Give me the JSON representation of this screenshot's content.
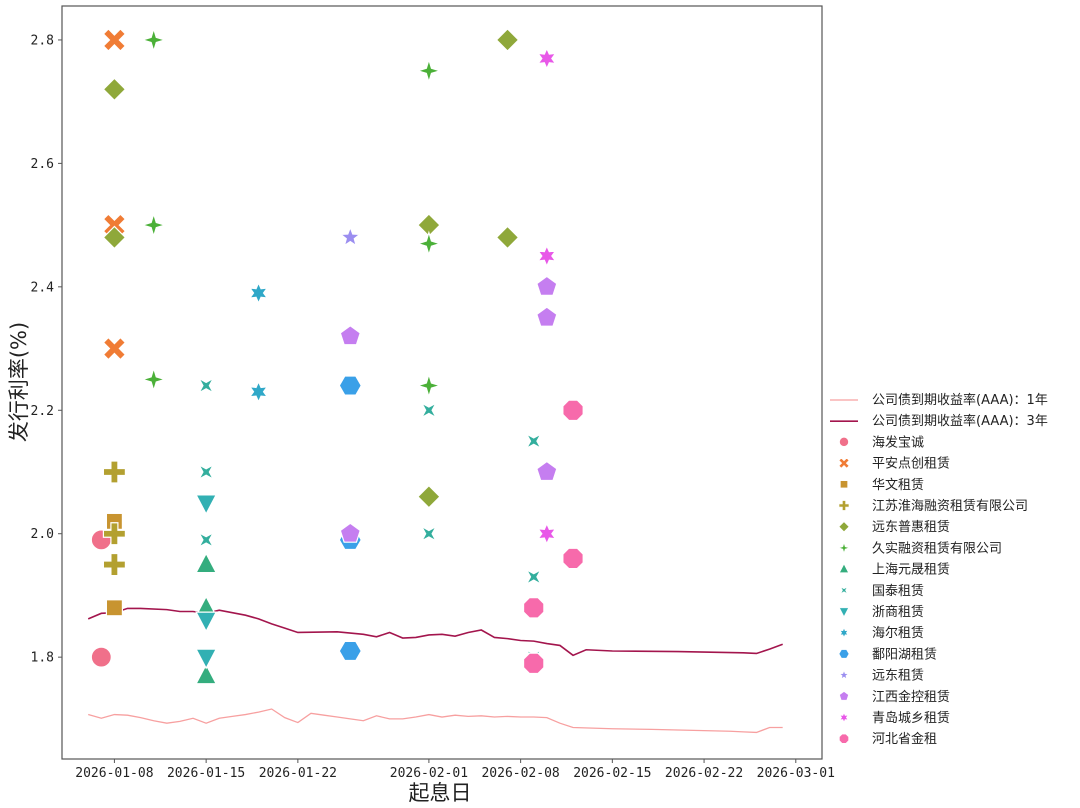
{
  "chart_data": {
    "type": "scatter",
    "xlabel": "起息日",
    "ylabel": "发行利率(%)",
    "x_ticks": [
      "2026-01-08",
      "2026-01-15",
      "2026-01-22",
      "2026-02-01",
      "2026-02-08",
      "2026-02-15",
      "2026-02-22",
      "2026-03-01"
    ],
    "y_ticks": [
      "1.8",
      "2.0",
      "2.2",
      "2.4",
      "2.6",
      "2.8"
    ],
    "xlim": [
      "2026-01-04",
      "2026-03-03"
    ],
    "ylim": [
      1.635,
      2.855
    ],
    "legend_position": "right",
    "grid": false,
    "lines": [
      {
        "name": "公司债到期收益率(AAA)：1年",
        "color": "#f7a0a0",
        "points": [
          [
            "2026-01-06",
            1.707
          ],
          [
            "2026-01-07",
            1.701
          ],
          [
            "2026-01-08",
            1.707
          ],
          [
            "2026-01-09",
            1.706
          ],
          [
            "2026-01-10",
            1.702
          ],
          [
            "2026-01-11",
            1.697
          ],
          [
            "2026-01-12",
            1.693
          ],
          [
            "2026-01-13",
            1.696
          ],
          [
            "2026-01-14",
            1.701
          ],
          [
            "2026-01-15",
            1.693
          ],
          [
            "2026-01-16",
            1.701
          ],
          [
            "2026-01-17",
            1.704
          ],
          [
            "2026-01-18",
            1.707
          ],
          [
            "2026-01-19",
            1.711
          ],
          [
            "2026-01-20",
            1.716
          ],
          [
            "2026-01-21",
            1.702
          ],
          [
            "2026-01-22",
            1.694
          ],
          [
            "2026-01-23",
            1.709
          ],
          [
            "2026-01-24",
            1.706
          ],
          [
            "2026-01-25",
            1.703
          ],
          [
            "2026-01-26",
            1.7
          ],
          [
            "2026-01-27",
            1.697
          ],
          [
            "2026-01-28",
            1.705
          ],
          [
            "2026-01-29",
            1.7
          ],
          [
            "2026-01-30",
            1.7
          ],
          [
            "2026-01-31",
            1.703
          ],
          [
            "2026-02-01",
            1.707
          ],
          [
            "2026-02-02",
            1.703
          ],
          [
            "2026-02-03",
            1.706
          ],
          [
            "2026-02-04",
            1.704
          ],
          [
            "2026-02-05",
            1.705
          ],
          [
            "2026-02-06",
            1.703
          ],
          [
            "2026-02-07",
            1.704
          ],
          [
            "2026-02-08",
            1.703
          ],
          [
            "2026-02-09",
            1.703
          ],
          [
            "2026-02-10",
            1.702
          ],
          [
            "2026-02-11",
            1.693
          ],
          [
            "2026-02-12",
            1.686
          ],
          [
            "2026-02-15",
            1.684
          ],
          [
            "2026-02-18",
            1.683
          ],
          [
            "2026-02-22",
            1.681
          ],
          [
            "2026-02-24",
            1.68
          ],
          [
            "2026-02-25",
            1.679
          ],
          [
            "2026-02-26",
            1.678
          ],
          [
            "2026-02-27",
            1.686
          ],
          [
            "2026-02-28",
            1.686
          ]
        ]
      },
      {
        "name": "公司债到期收益率(AAA)：3年",
        "color": "#a3154d",
        "points": [
          [
            "2026-01-06",
            1.862
          ],
          [
            "2026-01-07",
            1.871
          ],
          [
            "2026-01-08",
            1.872
          ],
          [
            "2026-01-09",
            1.879
          ],
          [
            "2026-01-10",
            1.879
          ],
          [
            "2026-01-12",
            1.877
          ],
          [
            "2026-01-13",
            1.874
          ],
          [
            "2026-01-14",
            1.874
          ],
          [
            "2026-01-15",
            1.871
          ],
          [
            "2026-01-16",
            1.876
          ],
          [
            "2026-01-18",
            1.868
          ],
          [
            "2026-01-19",
            1.862
          ],
          [
            "2026-01-20",
            1.854
          ],
          [
            "2026-01-21",
            1.847
          ],
          [
            "2026-01-22",
            1.84
          ],
          [
            "2026-01-25",
            1.841
          ],
          [
            "2026-01-26",
            1.839
          ],
          [
            "2026-01-27",
            1.837
          ],
          [
            "2026-01-28",
            1.833
          ],
          [
            "2026-01-29",
            1.84
          ],
          [
            "2026-01-30",
            1.831
          ],
          [
            "2026-01-31",
            1.832
          ],
          [
            "2026-02-01",
            1.836
          ],
          [
            "2026-02-02",
            1.837
          ],
          [
            "2026-02-03",
            1.834
          ],
          [
            "2026-02-04",
            1.84
          ],
          [
            "2026-02-05",
            1.844
          ],
          [
            "2026-02-06",
            1.832
          ],
          [
            "2026-02-07",
            1.83
          ],
          [
            "2026-02-08",
            1.827
          ],
          [
            "2026-02-09",
            1.826
          ],
          [
            "2026-02-10",
            1.822
          ],
          [
            "2026-02-11",
            1.819
          ],
          [
            "2026-02-12",
            1.803
          ],
          [
            "2026-02-13",
            1.812
          ],
          [
            "2026-02-15",
            1.81
          ],
          [
            "2026-02-20",
            1.809
          ],
          [
            "2026-02-25",
            1.807
          ],
          [
            "2026-02-26",
            1.806
          ],
          [
            "2026-02-27",
            1.813
          ],
          [
            "2026-02-28",
            1.821
          ]
        ]
      }
    ],
    "series": [
      {
        "name": "海发宝诚",
        "color": "#f0708a",
        "marker": "circle",
        "points": [
          [
            "2026-01-07",
            1.99
          ],
          [
            "2026-01-07",
            1.8
          ]
        ]
      },
      {
        "name": "平安点创租赁",
        "color": "#f07c35",
        "marker": "x",
        "points": [
          [
            "2026-01-08",
            2.8
          ],
          [
            "2026-01-08",
            2.5
          ],
          [
            "2026-01-08",
            2.3
          ]
        ]
      },
      {
        "name": "华文租赁",
        "color": "#c89430",
        "marker": "square",
        "points": [
          [
            "2026-01-08",
            2.02
          ],
          [
            "2026-01-08",
            1.88
          ]
        ]
      },
      {
        "name": "江苏淮海融资租赁有限公司",
        "color": "#b3a030",
        "marker": "plus",
        "points": [
          [
            "2026-01-08",
            2.1
          ],
          [
            "2026-01-08",
            2.0
          ],
          [
            "2026-01-08",
            1.95
          ]
        ]
      },
      {
        "name": "远东普惠租赁",
        "color": "#8fa83a",
        "marker": "diamond",
        "points": [
          [
            "2026-01-08",
            2.72
          ],
          [
            "2026-01-08",
            2.48
          ],
          [
            "2026-02-01",
            2.5
          ],
          [
            "2026-02-01",
            2.06
          ],
          [
            "2026-02-07",
            2.8
          ],
          [
            "2026-02-07",
            2.48
          ]
        ]
      },
      {
        "name": "久实融资租赁有限公司",
        "color": "#4bb038",
        "marker": "star4",
        "points": [
          [
            "2026-01-11",
            2.8
          ],
          [
            "2026-01-11",
            2.5
          ],
          [
            "2026-01-11",
            2.25
          ],
          [
            "2026-02-01",
            2.75
          ],
          [
            "2026-02-01",
            2.47
          ],
          [
            "2026-02-01",
            2.24
          ]
        ]
      },
      {
        "name": "上海元晟租赁",
        "color": "#34ad7e",
        "marker": "triangle-up",
        "points": [
          [
            "2026-01-15",
            1.95
          ],
          [
            "2026-01-15",
            1.88
          ],
          [
            "2026-01-15",
            1.77
          ]
        ]
      },
      {
        "name": "国泰租赁",
        "color": "#33ae9d",
        "marker": "thin-x",
        "points": [
          [
            "2026-01-15",
            2.24
          ],
          [
            "2026-01-15",
            2.1
          ],
          [
            "2026-01-15",
            1.99
          ],
          [
            "2026-02-01",
            2.2
          ],
          [
            "2026-02-01",
            2.0
          ],
          [
            "2026-02-09",
            2.15
          ],
          [
            "2026-02-09",
            1.93
          ],
          [
            "2026-02-09",
            1.8
          ]
        ]
      },
      {
        "name": "浙商租赁",
        "color": "#32b0b3",
        "marker": "triangle-down",
        "points": [
          [
            "2026-01-15",
            2.05
          ],
          [
            "2026-01-15",
            1.86
          ],
          [
            "2026-01-15",
            1.8
          ]
        ]
      },
      {
        "name": "海尔租赁",
        "color": "#30a8c8",
        "marker": "star6",
        "points": [
          [
            "2026-01-19",
            2.23
          ],
          [
            "2026-01-19",
            2.39
          ]
        ]
      },
      {
        "name": "鄱阳湖租赁",
        "color": "#3aa0e8",
        "marker": "hexagon",
        "points": [
          [
            "2026-01-26",
            2.24
          ],
          [
            "2026-01-26",
            1.99
          ],
          [
            "2026-01-26",
            1.81
          ]
        ]
      },
      {
        "name": "远东租赁",
        "color": "#9b8ef0",
        "marker": "star5",
        "points": [
          [
            "2026-01-26",
            2.48
          ]
        ]
      },
      {
        "name": "江西金控租赁",
        "color": "#c57ef0",
        "marker": "pentagon",
        "points": [
          [
            "2026-01-26",
            2.32
          ],
          [
            "2026-01-26",
            2.0
          ],
          [
            "2026-02-10",
            2.4
          ],
          [
            "2026-02-10",
            2.35
          ],
          [
            "2026-02-10",
            2.1
          ]
        ]
      },
      {
        "name": "青岛城乡租赁",
        "color": "#e858e8",
        "marker": "star6",
        "points": [
          [
            "2026-02-10",
            2.77
          ],
          [
            "2026-02-10",
            2.45
          ],
          [
            "2026-02-10",
            2.0
          ]
        ]
      },
      {
        "name": "河北省金租",
        "color": "#f76aab",
        "marker": "octagon",
        "points": [
          [
            "2026-02-09",
            1.88
          ],
          [
            "2026-02-09",
            1.79
          ],
          [
            "2026-02-12",
            2.2
          ],
          [
            "2026-02-12",
            1.96
          ]
        ]
      }
    ]
  }
}
